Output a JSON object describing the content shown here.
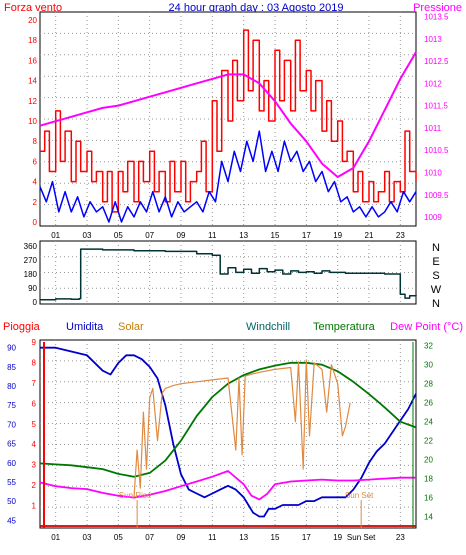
{
  "chart_data": [
    {
      "type": "line",
      "title": "24 hour graph day : 03 Agosto 2019",
      "left_label": "Forza vento",
      "right_label": "Pressione",
      "x_ticks": [
        "01",
        "03",
        "05",
        "07",
        "09",
        "11",
        "13",
        "15",
        "17",
        "19",
        "21",
        "23"
      ],
      "y_left_ticks": [
        "0",
        "2",
        "4",
        "6",
        "8",
        "10",
        "12",
        "14",
        "16",
        "18",
        "20"
      ],
      "y_right_ticks": [
        "1009",
        "1009.5",
        "1010",
        "1010.5",
        "1011",
        "1011.5",
        "1012",
        "1012.5",
        "1013",
        "1013.5"
      ],
      "ylim_left": [
        0,
        20
      ],
      "ylim_right": [
        1008.8,
        1013.6
      ],
      "grid": true,
      "series": [
        {
          "key": "gust",
          "color": "#ff0000",
          "axis": "left",
          "style": "step",
          "x": [
            0,
            0.3,
            0.6,
            1.0,
            1.3,
            1.6,
            2.0,
            2.3,
            2.6,
            3.0,
            3.3,
            3.6,
            4.0,
            4.3,
            4.6,
            5.0,
            5.3,
            5.6,
            6.0,
            6.3,
            6.6,
            7.0,
            7.3,
            7.6,
            8.0,
            8.3,
            8.6,
            9.0,
            9.3,
            9.6,
            10.0,
            10.3,
            10.6,
            11.0,
            11.3,
            11.6,
            12.0,
            12.3,
            12.6,
            13.0,
            13.3,
            13.6,
            14.0,
            14.3,
            14.6,
            15.0,
            15.3,
            15.6,
            16.0,
            16.3,
            16.6,
            17.0,
            17.3,
            17.6,
            18.0,
            18.3,
            18.6,
            19.0,
            19.3,
            19.6,
            20.0,
            20.3,
            20.6,
            21.0,
            21.3,
            21.6,
            22.0,
            22.3,
            22.6,
            23.0,
            23.3,
            23.6,
            24.0
          ],
          "y": [
            7,
            9,
            5,
            11,
            6,
            9,
            4,
            8,
            5,
            7,
            4,
            5,
            2,
            5,
            1,
            5,
            3,
            6,
            2,
            6,
            4,
            7,
            3,
            5,
            2,
            6,
            3,
            6,
            2,
            4,
            5,
            8,
            3,
            12,
            7,
            15,
            10,
            16,
            12,
            19,
            13,
            18,
            11,
            14,
            10,
            17,
            12,
            16,
            11,
            18,
            13,
            15,
            11,
            14,
            9,
            12,
            8,
            10,
            6,
            7,
            3,
            5,
            2,
            4,
            2,
            3,
            5,
            2,
            4,
            3,
            9,
            5,
            4
          ]
        },
        {
          "key": "wind",
          "color": "#0000ff",
          "axis": "left",
          "style": "line",
          "x": [
            0,
            0.4,
            0.8,
            1.2,
            1.6,
            2.0,
            2.4,
            2.8,
            3.2,
            3.6,
            4.0,
            4.4,
            4.8,
            5.2,
            5.6,
            6.0,
            6.4,
            6.8,
            7.2,
            7.6,
            8.0,
            8.4,
            8.8,
            9.2,
            9.6,
            10.0,
            10.4,
            10.8,
            11.2,
            11.6,
            12.0,
            12.4,
            12.8,
            13.2,
            13.6,
            14.0,
            14.4,
            14.8,
            15.2,
            15.6,
            16.0,
            16.4,
            16.8,
            17.2,
            17.6,
            18.0,
            18.4,
            18.8,
            19.2,
            19.6,
            20.0,
            20.4,
            20.8,
            21.2,
            21.6,
            22.0,
            22.4,
            22.8,
            23.2,
            23.6,
            24.0
          ],
          "y": [
            3.5,
            2,
            4,
            1,
            3,
            1,
            2.5,
            0.5,
            2,
            1,
            1.5,
            0,
            2,
            0,
            1.5,
            0.5,
            2,
            1,
            3,
            1,
            2.5,
            0.5,
            2,
            1,
            1.5,
            2,
            1,
            3,
            2,
            6,
            4,
            7,
            5,
            8,
            6,
            9,
            5,
            7,
            5,
            8,
            6,
            7,
            5,
            6,
            4,
            5,
            3,
            4,
            2,
            2.5,
            1,
            1.5,
            0.5,
            1.5,
            0.5,
            1,
            2,
            1,
            3,
            2,
            3
          ]
        },
        {
          "key": "pressure",
          "color": "#ff00ff",
          "axis": "right",
          "style": "line",
          "x": [
            0,
            1,
            2,
            3,
            4,
            5,
            6,
            7,
            8,
            9,
            10,
            11,
            12,
            13,
            14,
            15,
            16,
            17,
            18,
            19,
            20,
            21,
            22,
            23,
            24
          ],
          "y": [
            1011.05,
            1011.15,
            1011.25,
            1011.35,
            1011.45,
            1011.5,
            1011.6,
            1011.7,
            1011.8,
            1011.9,
            1012.0,
            1012.1,
            1012.2,
            1012.2,
            1012.0,
            1011.6,
            1011.1,
            1010.7,
            1010.2,
            1009.9,
            1010.1,
            1010.7,
            1011.4,
            1012.1,
            1012.7
          ]
        }
      ]
    },
    {
      "type": "line",
      "y_left_ticks": [
        "0",
        "90",
        "180",
        "270",
        "360"
      ],
      "y_right_labels": [
        "N",
        "W",
        "S",
        "E",
        "N"
      ],
      "ylim": [
        0,
        360
      ],
      "grid": true,
      "series": [
        {
          "key": "direction",
          "color": "#003333",
          "style": "step",
          "x": [
            0,
            1,
            2,
            2.5,
            2.6,
            4,
            6,
            8,
            10,
            11,
            11.5,
            12,
            12.5,
            13,
            13.5,
            14,
            14.5,
            15,
            15.5,
            16,
            16.5,
            17,
            17.5,
            18,
            18.5,
            19,
            19.5,
            20,
            21,
            22,
            22.7,
            23.0,
            23.3,
            23.6,
            24.0
          ],
          "y": [
            15,
            20,
            18,
            22,
            340,
            335,
            330,
            325,
            310,
            300,
            180,
            220,
            190,
            210,
            185,
            215,
            195,
            205,
            180,
            200,
            190,
            195,
            185,
            200,
            190,
            190,
            185,
            185,
            185,
            180,
            180,
            50,
            25,
            40,
            45
          ]
        }
      ]
    },
    {
      "type": "line",
      "legend": {
        "rain": "Pioggia",
        "humidity": "Umidita",
        "solar": "Solar",
        "windchill": "Windchill",
        "temperature": "Temperatura",
        "dewpoint": "Dew Point (°C)"
      },
      "rain_ticks": [
        "1",
        "2",
        "3",
        "4",
        "5",
        "6",
        "7",
        "8",
        "9"
      ],
      "humidity_ticks": [
        "45",
        "50",
        "55",
        "60",
        "65",
        "70",
        "75",
        "80",
        "85",
        "90"
      ],
      "temp_ticks": [
        "14",
        "16",
        "18",
        "20",
        "22",
        "24",
        "26",
        "28",
        "30",
        "32"
      ],
      "x_ticks": [
        "01",
        "03",
        "05",
        "07",
        "09",
        "11",
        "13",
        "15",
        "17",
        "19",
        "21",
        "23"
      ],
      "sun_rise_label": "Sun Rise",
      "sun_set_label": "Sun Set",
      "sun_rise_hour": 6.2,
      "sun_set_hour": 20.5,
      "ylim_humidity": [
        43,
        92
      ],
      "ylim_temp": [
        12.8,
        32.6
      ],
      "ylim_rain": [
        0,
        9
      ],
      "grid": true,
      "series": [
        {
          "key": "humidity",
          "color": "#0000cc",
          "axis": "humidity",
          "x": [
            0,
            1,
            2,
            3,
            4,
            4.5,
            5,
            5.5,
            6,
            6.5,
            7,
            7.5,
            8,
            8.5,
            9,
            9.5,
            10,
            10.5,
            11,
            11.5,
            12,
            12.5,
            13,
            13.3,
            13.6,
            14,
            14.3,
            14.6,
            15,
            15.5,
            16,
            16.5,
            17,
            17.5,
            18,
            18.5,
            19,
            19.5,
            20,
            20.5,
            21,
            21.5,
            22,
            22.5,
            23,
            23.5,
            24
          ],
          "y": [
            90,
            90,
            89,
            88,
            84,
            83,
            86,
            88,
            88,
            87,
            85,
            82,
            75,
            65,
            57,
            53,
            52,
            51,
            52,
            53,
            54,
            53,
            51,
            49,
            47,
            46,
            46,
            48,
            48,
            49,
            49,
            49,
            50,
            50,
            51,
            51,
            51,
            51,
            53,
            56,
            60,
            63,
            65,
            68,
            71,
            74,
            78
          ]
        },
        {
          "key": "temperature",
          "color": "#007700",
          "axis": "temp",
          "x": [
            0,
            1,
            2,
            3,
            4,
            5,
            6,
            7,
            8,
            9,
            10,
            11,
            12,
            13,
            14,
            15,
            16,
            17,
            18,
            19,
            20,
            21,
            22,
            23,
            24
          ],
          "y": [
            19.6,
            19.5,
            19.4,
            19.2,
            19.0,
            18.5,
            18.2,
            18.6,
            19.9,
            22.0,
            24.6,
            26.6,
            28.0,
            28.9,
            29.5,
            29.9,
            30.2,
            30.2,
            30.0,
            29.3,
            28.2,
            26.9,
            25.5,
            24.0,
            23.4
          ]
        },
        {
          "key": "dewpoint",
          "color": "#ff00ff",
          "axis": "temp",
          "x": [
            0,
            1,
            2,
            3,
            4,
            5,
            6,
            7,
            8,
            9,
            10,
            11,
            12,
            13,
            13.5,
            14,
            14.5,
            15,
            16,
            17,
            18,
            19,
            20,
            21,
            22,
            23,
            24
          ],
          "y": [
            17.6,
            17.2,
            17.0,
            16.9,
            16.5,
            16.2,
            16.0,
            16.3,
            16.7,
            17.2,
            17.7,
            18.2,
            18.8,
            17.4,
            16.2,
            15.8,
            16.4,
            17.4,
            17.7,
            17.8,
            17.9,
            17.8,
            17.8,
            17.9,
            18.0,
            18.1,
            18.1
          ]
        },
        {
          "key": "solar",
          "color": "#e08a40",
          "axis": "temp",
          "x": [
            0,
            5.5,
            6.0,
            6.2,
            6.4,
            6.6,
            6.8,
            7.0,
            7.2,
            7.5,
            7.8,
            8.0,
            8.5,
            9,
            10,
            11,
            12,
            12.5,
            12.7,
            12.9,
            13.1,
            13.5,
            14,
            15,
            16,
            16.3,
            16.5,
            16.8,
            17.0,
            17.2,
            17.5,
            18,
            18.3,
            18.6,
            19,
            19.3,
            19.5,
            19.8,
            20.2,
            20.6,
            21,
            24
          ],
          "y": [
            null,
            null,
            16.0,
            21.0,
            17.0,
            25.0,
            19.0,
            26.5,
            27.5,
            22.0,
            27.0,
            27.5,
            27.8,
            28.0,
            28.2,
            28.4,
            28.6,
            21.0,
            28.6,
            20.5,
            28.8,
            29.0,
            29.2,
            29.5,
            29.7,
            24.0,
            30.3,
            19.0,
            30.5,
            22.5,
            30.2,
            29.5,
            25.0,
            30.0,
            28.0,
            22.5,
            23.5,
            26.0,
            null,
            null,
            null,
            null
          ]
        },
        {
          "key": "rain",
          "color": "#cc0000",
          "axis": "rain",
          "x": [
            0,
            24
          ],
          "y": [
            0,
            0
          ]
        }
      ]
    }
  ]
}
